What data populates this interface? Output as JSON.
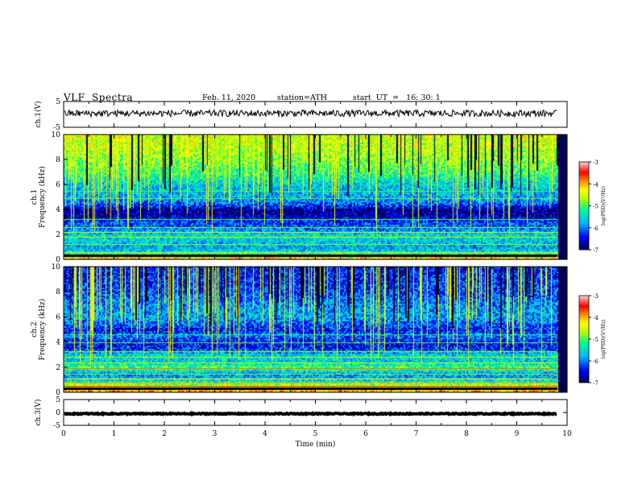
{
  "header": {
    "title": "VLF  Spectra",
    "date": "Feb. 11, 2020",
    "station": "station=ATH",
    "start_time": "start  UT  =   16: 30: 1"
  },
  "chart_data": [
    {
      "type": "line",
      "panel": "ch1-waveform",
      "ylabel": "ch.1(V)",
      "ylim": [
        -5,
        5
      ],
      "yticks": [
        "5",
        "-5"
      ],
      "xlim": [
        0,
        10
      ],
      "data_end_min": 9.8,
      "series": [
        {
          "name": "",
          "mean_v": 0.4,
          "noise_amplitude_v": 1.3,
          "color": "#000000"
        }
      ]
    },
    {
      "type": "heatmap",
      "panel": "ch1-spectrogram",
      "ylabel": "ch.1\nFrequency (kHz)",
      "ylim": [
        0,
        10
      ],
      "yticks": [
        "0",
        "2",
        "4",
        "6",
        "8",
        "10"
      ],
      "xlim": [
        0,
        10
      ],
      "data_end_min": 9.8,
      "colorbar": {
        "label": "log(PSD)(V²/Hz)",
        "range": [
          -7,
          -3
        ],
        "ticks": [
          "-3",
          "-4",
          "-5",
          "-6",
          "-7"
        ]
      },
      "band_profile_log_psd": [
        {
          "f_khz": 0.0,
          "v": -3.5
        },
        {
          "f_khz": 0.3,
          "v": -4.8
        },
        {
          "f_khz": 0.6,
          "v": -5.4
        },
        {
          "f_khz": 1.0,
          "v": -5.8
        },
        {
          "f_khz": 1.5,
          "v": -5.6
        },
        {
          "f_khz": 2.0,
          "v": -5.5
        },
        {
          "f_khz": 2.5,
          "v": -6.0
        },
        {
          "f_khz": 3.0,
          "v": -6.2
        },
        {
          "f_khz": 3.5,
          "v": -6.7
        },
        {
          "f_khz": 4.0,
          "v": -6.8
        },
        {
          "f_khz": 4.5,
          "v": -6.1
        },
        {
          "f_khz": 5.0,
          "v": -5.8
        },
        {
          "f_khz": 6.0,
          "v": -5.6
        },
        {
          "f_khz": 7.0,
          "v": -5.1
        },
        {
          "f_khz": 8.0,
          "v": -4.8
        },
        {
          "f_khz": 9.0,
          "v": -4.6
        },
        {
          "f_khz": 10.0,
          "v": -4.5
        }
      ]
    },
    {
      "type": "heatmap",
      "panel": "ch2-spectrogram",
      "ylabel": "ch.2\nFrequency (kHz)",
      "ylim": [
        0,
        10
      ],
      "yticks": [
        "0",
        "2",
        "4",
        "6",
        "8",
        "10"
      ],
      "xlim": [
        0,
        10
      ],
      "data_end_min": 9.8,
      "colorbar": {
        "label": "log(PSD)(V²/Hz)",
        "range": [
          -7,
          -3
        ],
        "ticks": [
          "-3",
          "-4",
          "-5",
          "-6",
          "-7"
        ]
      },
      "band_profile_log_psd": [
        {
          "f_khz": 0.0,
          "v": -3.6
        },
        {
          "f_khz": 0.3,
          "v": -4.4
        },
        {
          "f_khz": 0.7,
          "v": -4.6
        },
        {
          "f_khz": 1.0,
          "v": -5.6
        },
        {
          "f_khz": 1.5,
          "v": -5.9
        },
        {
          "f_khz": 2.0,
          "v": -5.0
        },
        {
          "f_khz": 2.5,
          "v": -5.6
        },
        {
          "f_khz": 3.0,
          "v": -5.5
        },
        {
          "f_khz": 3.5,
          "v": -6.3
        },
        {
          "f_khz": 4.0,
          "v": -6.5
        },
        {
          "f_khz": 4.5,
          "v": -6.0
        },
        {
          "f_khz": 5.0,
          "v": -6.4
        },
        {
          "f_khz": 6.0,
          "v": -5.8
        },
        {
          "f_khz": 7.0,
          "v": -5.9
        },
        {
          "f_khz": 8.0,
          "v": -6.2
        },
        {
          "f_khz": 9.0,
          "v": -6.3
        },
        {
          "f_khz": 10.0,
          "v": -6.4
        }
      ]
    },
    {
      "type": "line",
      "panel": "ch3-waveform",
      "ylabel": "ch.3(V)",
      "ylim": [
        -5,
        5
      ],
      "yticks": [
        "5",
        "0",
        "-5"
      ],
      "xlim": [
        0,
        10
      ],
      "data_end_min": 9.8,
      "series": [
        {
          "name": "",
          "mean_v": -0.5,
          "noise_amplitude_v": 0.2,
          "color": "#000000"
        }
      ]
    }
  ],
  "x_axis": {
    "label": "Time  (min)",
    "ticks": [
      "0",
      "1",
      "2",
      "3",
      "4",
      "5",
      "6",
      "7",
      "8",
      "9",
      "10"
    ]
  },
  "colors": {
    "axis": "#000000",
    "gap": "#000000",
    "colormap": [
      "#000050",
      "#0000ff",
      "#00b4ff",
      "#00ff90",
      "#b4ff00",
      "#ffff00",
      "#ff8c00",
      "#ff0000",
      "#ffd7d7"
    ]
  }
}
